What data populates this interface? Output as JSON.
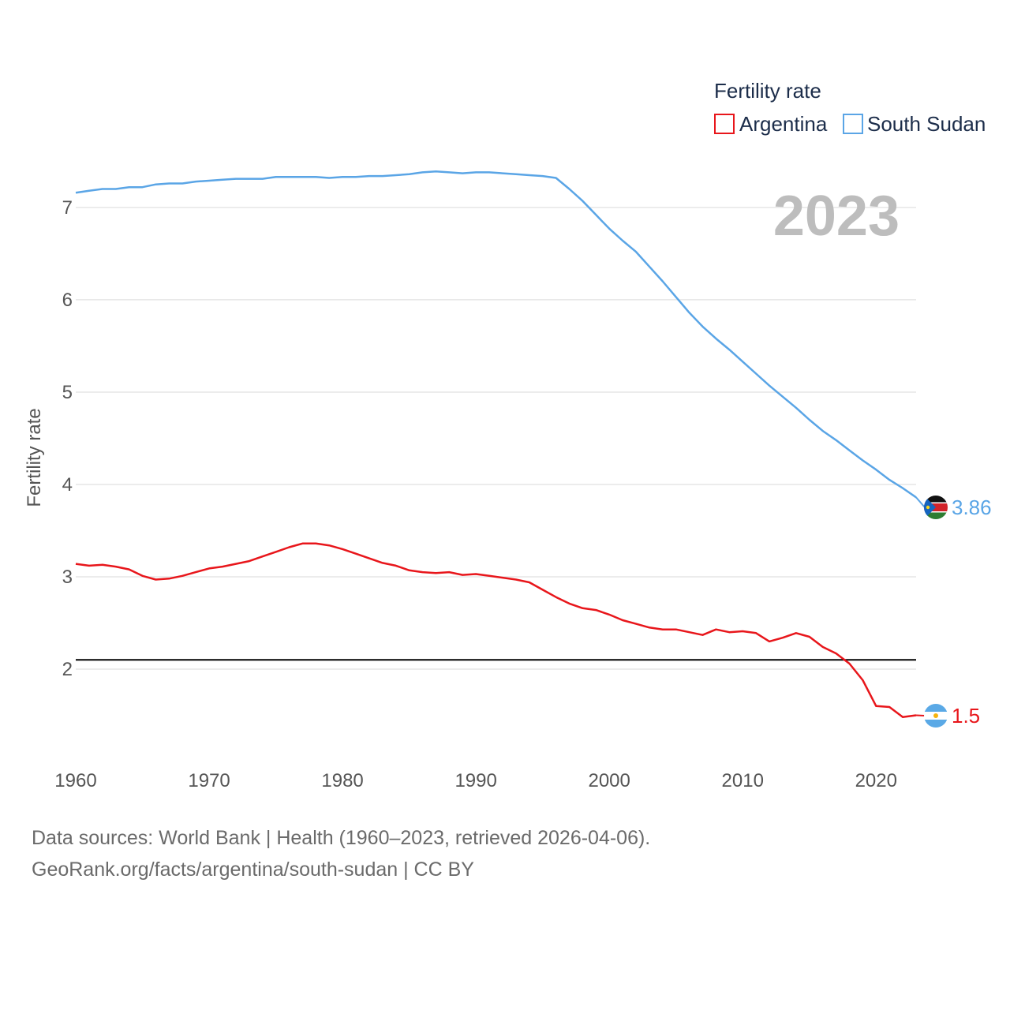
{
  "chart_data": {
    "type": "line",
    "year_label": "2023",
    "ylabel": "Fertility rate",
    "xlim": [
      1960,
      2023
    ],
    "ylim": [
      1.0,
      7.7
    ],
    "x_ticks": [
      1960,
      1970,
      1980,
      1990,
      2000,
      2010,
      2020
    ],
    "y_ticks": [
      2,
      3,
      4,
      5,
      6,
      7
    ],
    "reference_line": 2.1,
    "legend": {
      "title": "Fertility rate",
      "items": [
        "Argentina",
        "South Sudan"
      ]
    },
    "series": [
      {
        "name": "South Sudan",
        "color": "#5aa5e6",
        "end_label": "3.86",
        "values": [
          [
            1960,
            7.16
          ],
          [
            1961,
            7.18
          ],
          [
            1962,
            7.2
          ],
          [
            1963,
            7.2
          ],
          [
            1964,
            7.22
          ],
          [
            1965,
            7.22
          ],
          [
            1966,
            7.25
          ],
          [
            1967,
            7.26
          ],
          [
            1968,
            7.26
          ],
          [
            1969,
            7.28
          ],
          [
            1970,
            7.29
          ],
          [
            1971,
            7.3
          ],
          [
            1972,
            7.31
          ],
          [
            1973,
            7.31
          ],
          [
            1974,
            7.31
          ],
          [
            1975,
            7.33
          ],
          [
            1976,
            7.33
          ],
          [
            1977,
            7.33
          ],
          [
            1978,
            7.33
          ],
          [
            1979,
            7.32
          ],
          [
            1980,
            7.33
          ],
          [
            1981,
            7.33
          ],
          [
            1982,
            7.34
          ],
          [
            1983,
            7.34
          ],
          [
            1984,
            7.35
          ],
          [
            1985,
            7.36
          ],
          [
            1986,
            7.38
          ],
          [
            1987,
            7.39
          ],
          [
            1988,
            7.38
          ],
          [
            1989,
            7.37
          ],
          [
            1990,
            7.38
          ],
          [
            1991,
            7.38
          ],
          [
            1992,
            7.37
          ],
          [
            1993,
            7.36
          ],
          [
            1994,
            7.35
          ],
          [
            1995,
            7.34
          ],
          [
            1996,
            7.32
          ],
          [
            1997,
            7.2
          ],
          [
            1998,
            7.07
          ],
          [
            1999,
            6.92
          ],
          [
            2000,
            6.77
          ],
          [
            2001,
            6.64
          ],
          [
            2002,
            6.52
          ],
          [
            2003,
            6.36
          ],
          [
            2004,
            6.2
          ],
          [
            2005,
            6.03
          ],
          [
            2006,
            5.86
          ],
          [
            2007,
            5.71
          ],
          [
            2008,
            5.58
          ],
          [
            2009,
            5.46
          ],
          [
            2010,
            5.33
          ],
          [
            2011,
            5.2
          ],
          [
            2012,
            5.07
          ],
          [
            2013,
            4.95
          ],
          [
            2014,
            4.83
          ],
          [
            2015,
            4.7
          ],
          [
            2016,
            4.58
          ],
          [
            2017,
            4.48
          ],
          [
            2018,
            4.37
          ],
          [
            2019,
            4.26
          ],
          [
            2020,
            4.16
          ],
          [
            2021,
            4.05
          ],
          [
            2022,
            3.96
          ],
          [
            2023,
            3.86
          ]
        ]
      },
      {
        "name": "Argentina",
        "color": "#e8161b",
        "end_label": "1.5",
        "values": [
          [
            1960,
            3.14
          ],
          [
            1961,
            3.12
          ],
          [
            1962,
            3.13
          ],
          [
            1963,
            3.11
          ],
          [
            1964,
            3.08
          ],
          [
            1965,
            3.01
          ],
          [
            1966,
            2.97
          ],
          [
            1967,
            2.98
          ],
          [
            1968,
            3.01
          ],
          [
            1969,
            3.05
          ],
          [
            1970,
            3.09
          ],
          [
            1971,
            3.11
          ],
          [
            1972,
            3.14
          ],
          [
            1973,
            3.17
          ],
          [
            1974,
            3.22
          ],
          [
            1975,
            3.27
          ],
          [
            1976,
            3.32
          ],
          [
            1977,
            3.36
          ],
          [
            1978,
            3.36
          ],
          [
            1979,
            3.34
          ],
          [
            1980,
            3.3
          ],
          [
            1981,
            3.25
          ],
          [
            1982,
            3.2
          ],
          [
            1983,
            3.15
          ],
          [
            1984,
            3.12
          ],
          [
            1985,
            3.07
          ],
          [
            1986,
            3.05
          ],
          [
            1987,
            3.04
          ],
          [
            1988,
            3.05
          ],
          [
            1989,
            3.02
          ],
          [
            1990,
            3.03
          ],
          [
            1991,
            3.01
          ],
          [
            1992,
            2.99
          ],
          [
            1993,
            2.97
          ],
          [
            1994,
            2.94
          ],
          [
            1995,
            2.86
          ],
          [
            1996,
            2.78
          ],
          [
            1997,
            2.71
          ],
          [
            1998,
            2.66
          ],
          [
            1999,
            2.64
          ],
          [
            2000,
            2.59
          ],
          [
            2001,
            2.53
          ],
          [
            2002,
            2.49
          ],
          [
            2003,
            2.45
          ],
          [
            2004,
            2.43
          ],
          [
            2005,
            2.43
          ],
          [
            2006,
            2.4
          ],
          [
            2007,
            2.37
          ],
          [
            2008,
            2.43
          ],
          [
            2009,
            2.4
          ],
          [
            2010,
            2.41
          ],
          [
            2011,
            2.39
          ],
          [
            2012,
            2.3
          ],
          [
            2013,
            2.34
          ],
          [
            2014,
            2.39
          ],
          [
            2015,
            2.35
          ],
          [
            2016,
            2.24
          ],
          [
            2017,
            2.17
          ],
          [
            2018,
            2.06
          ],
          [
            2019,
            1.88
          ],
          [
            2020,
            1.6
          ],
          [
            2021,
            1.59
          ],
          [
            2022,
            1.48
          ],
          [
            2023,
            1.5
          ]
        ]
      }
    ]
  },
  "source": {
    "line1": "Data sources: World Bank | Health (1960–2023, retrieved 2026-04-06).",
    "line2": "GeoRank.org/facts/argentina/south-sudan | CC BY"
  }
}
